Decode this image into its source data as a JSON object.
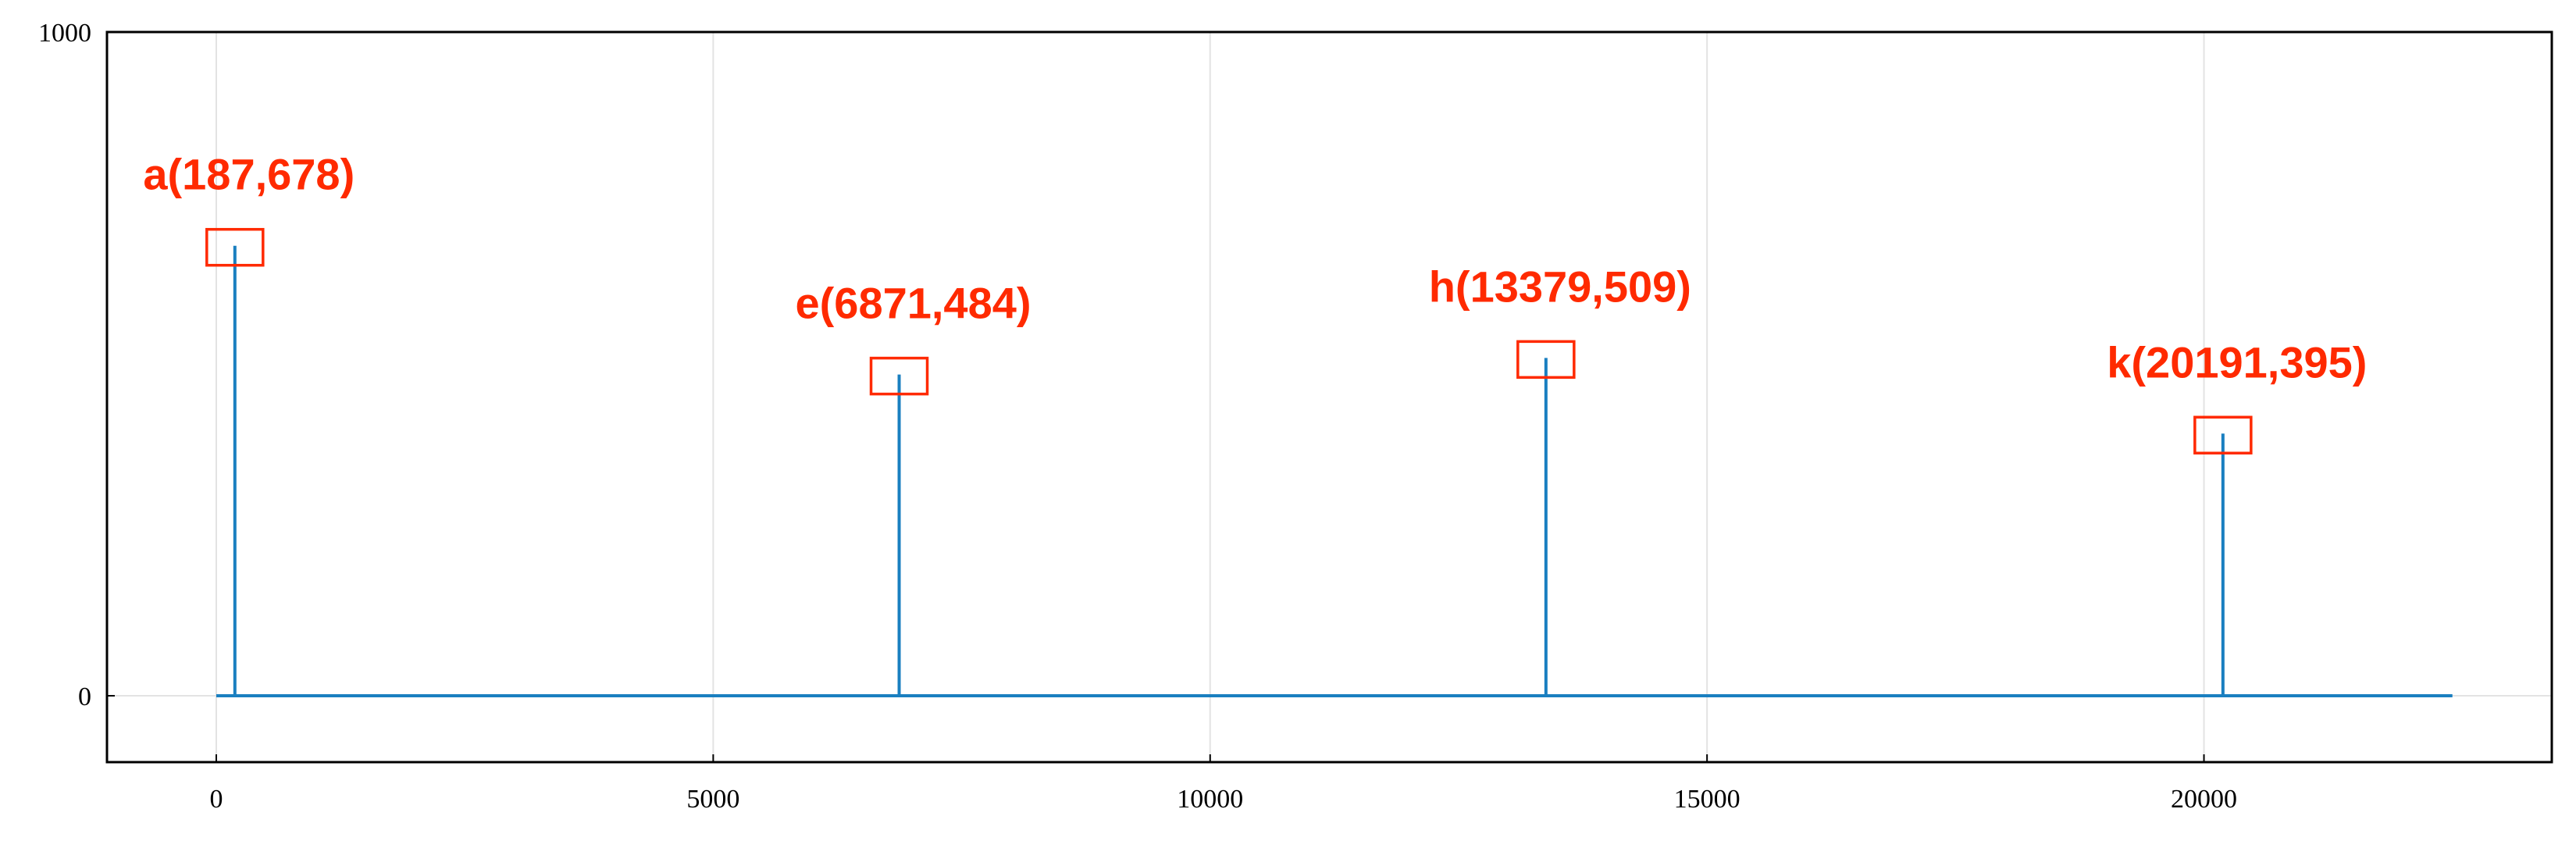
{
  "chart_data": {
    "type": "stem",
    "title": "",
    "xlabel": "",
    "ylabel": "",
    "xlim": [
      -1100,
      23500
    ],
    "ylim": [
      -100,
      1000
    ],
    "x_ticks": [
      0,
      5000,
      10000,
      15000,
      20000
    ],
    "x_tick_labels": [
      "0",
      "5000",
      "10000",
      "15000",
      "20000"
    ],
    "y_ticks": [
      0,
      1000
    ],
    "y_tick_labels": [
      "0",
      "1000"
    ],
    "grid": true,
    "legend": "none",
    "baseline": {
      "x_start": 0,
      "x_end": 22500,
      "y": 0
    },
    "series": [
      {
        "x": [
          187,
          6871,
          13379,
          20191
        ],
        "y": [
          678,
          484,
          509,
          395
        ]
      }
    ],
    "annotations": [
      {
        "x": 187,
        "y": 678,
        "text": "a(187,678)"
      },
      {
        "x": 6871,
        "y": 484,
        "text": "e(6871,484)"
      },
      {
        "x": 13379,
        "y": 509,
        "text": "h(13379,509)"
      },
      {
        "x": 20191,
        "y": 395,
        "text": "k(20191,395)"
      }
    ],
    "colors": {
      "line": "#1a7fc0",
      "annotation": "#ff2a00",
      "grid": "#e3e3e3",
      "axes": "#000000"
    }
  }
}
